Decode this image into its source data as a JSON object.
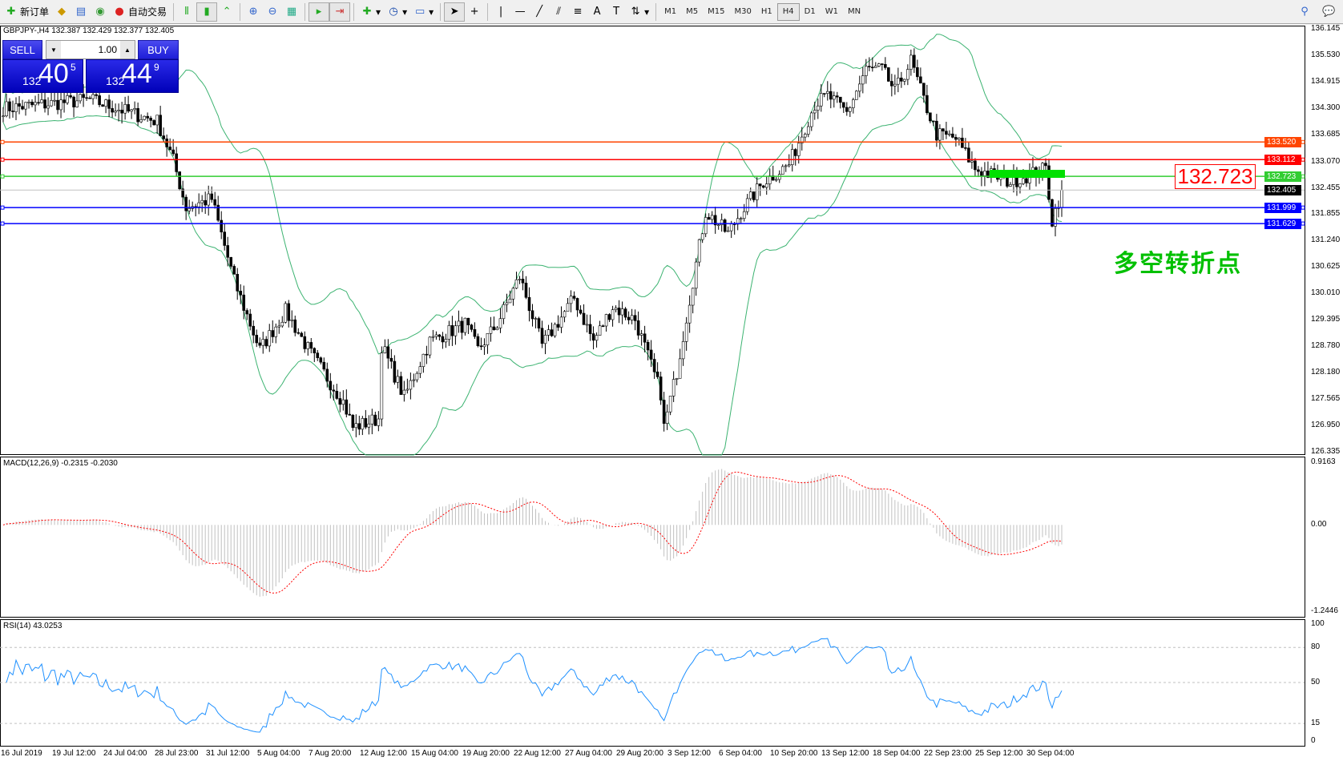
{
  "toolbar": {
    "new_order": "新订单",
    "auto_trading": "自动交易",
    "timeframes": [
      "M1",
      "M5",
      "M15",
      "M30",
      "H1",
      "H4",
      "D1",
      "W1",
      "MN"
    ],
    "active_timeframe": "H4"
  },
  "chart": {
    "info": "GBPJPY-,H4  132.387 132.429 132.377 132.405",
    "symbol": "GBPJPY-"
  },
  "trade_panel": {
    "sell": "SELL",
    "buy": "BUY",
    "lot": "1.00",
    "sell_small": "132",
    "sell_big": "40",
    "sell_pip": "5",
    "buy_small": "132",
    "buy_big": "44",
    "buy_pip": "9"
  },
  "price_axis": [
    "136.145",
    "135.530",
    "134.915",
    "134.300",
    "133.685",
    "133.070",
    "132.455",
    "131.855",
    "131.240",
    "130.625",
    "130.010",
    "129.395",
    "128.780",
    "128.180",
    "127.565",
    "126.950",
    "126.335"
  ],
  "price_range": [
    126.335,
    136.145
  ],
  "levels": [
    {
      "price": "133.520",
      "color": "#ff4500"
    },
    {
      "price": "133.112",
      "color": "#ff0000"
    },
    {
      "price": "132.723",
      "color": "#32cd32"
    },
    {
      "price": "132.405",
      "color": "#000000",
      "current": true
    },
    {
      "price": "131.999",
      "color": "#0000ff"
    },
    {
      "price": "131.629",
      "color": "#0000ff"
    }
  ],
  "annotation": {
    "price_label": "132.723",
    "text": "多空转折点",
    "text_color": "#00c000"
  },
  "price_anchors": [
    [
      0,
      134.3
    ],
    [
      27,
      134.5
    ],
    [
      48,
      134.0
    ],
    [
      53,
      133.1
    ],
    [
      57,
      132.0
    ],
    [
      65,
      132.2
    ],
    [
      72,
      130.3
    ],
    [
      80,
      128.7
    ],
    [
      88,
      129.6
    ],
    [
      96,
      128.6
    ],
    [
      106,
      127.5
    ],
    [
      109,
      126.9
    ],
    [
      117,
      127.1
    ],
    [
      118,
      128.8
    ],
    [
      125,
      127.6
    ],
    [
      133,
      128.9
    ],
    [
      144,
      129.3
    ],
    [
      148,
      128.7
    ],
    [
      154,
      129.3
    ],
    [
      161,
      130.4
    ],
    [
      168,
      128.8
    ],
    [
      178,
      129.9
    ],
    [
      184,
      128.9
    ],
    [
      190,
      129.7
    ],
    [
      197,
      129.4
    ],
    [
      205,
      127.7
    ],
    [
      206,
      126.9
    ],
    [
      210,
      128.2
    ],
    [
      215,
      130.3
    ],
    [
      219,
      131.9
    ],
    [
      226,
      131.4
    ],
    [
      230,
      131.9
    ],
    [
      237,
      132.6
    ],
    [
      245,
      133.0
    ],
    [
      253,
      134.4
    ],
    [
      257,
      134.6
    ],
    [
      263,
      134.2
    ],
    [
      269,
      135.2
    ],
    [
      274,
      135.2
    ],
    [
      278,
      134.7
    ],
    [
      283,
      135.4
    ],
    [
      287,
      134.5
    ],
    [
      291,
      133.7
    ],
    [
      297,
      133.6
    ],
    [
      303,
      132.9
    ],
    [
      314,
      132.6
    ],
    [
      325,
      132.9
    ],
    [
      327,
      131.7
    ],
    [
      330,
      132.4
    ]
  ],
  "macd": {
    "label": "MACD(12,26,9) -0.2315 -0.2030",
    "axis": [
      "0.9163",
      "0.00",
      "-1.2446"
    ],
    "range": [
      -1.2446,
      0.9163
    ]
  },
  "rsi": {
    "label": "RSI(14) 43.0253",
    "axis": [
      "100",
      "80",
      "50",
      "15",
      "0"
    ],
    "levels": [
      80,
      50,
      15
    ]
  },
  "time_axis": [
    "16 Jul 2019",
    "19 Jul 12:00",
    "24 Jul 04:00",
    "28 Jul 23:00",
    "31 Jul 12:00",
    "5 Aug 04:00",
    "7 Aug 20:00",
    "12 Aug 12:00",
    "15 Aug 04:00",
    "19 Aug 20:00",
    "22 Aug 12:00",
    "27 Aug 04:00",
    "29 Aug 20:00",
    "3 Sep 12:00",
    "6 Sep 04:00",
    "10 Sep 20:00",
    "13 Sep 12:00",
    "18 Sep 04:00",
    "22 Sep 23:00",
    "25 Sep 12:00",
    "30 Sep 04:00"
  ]
}
